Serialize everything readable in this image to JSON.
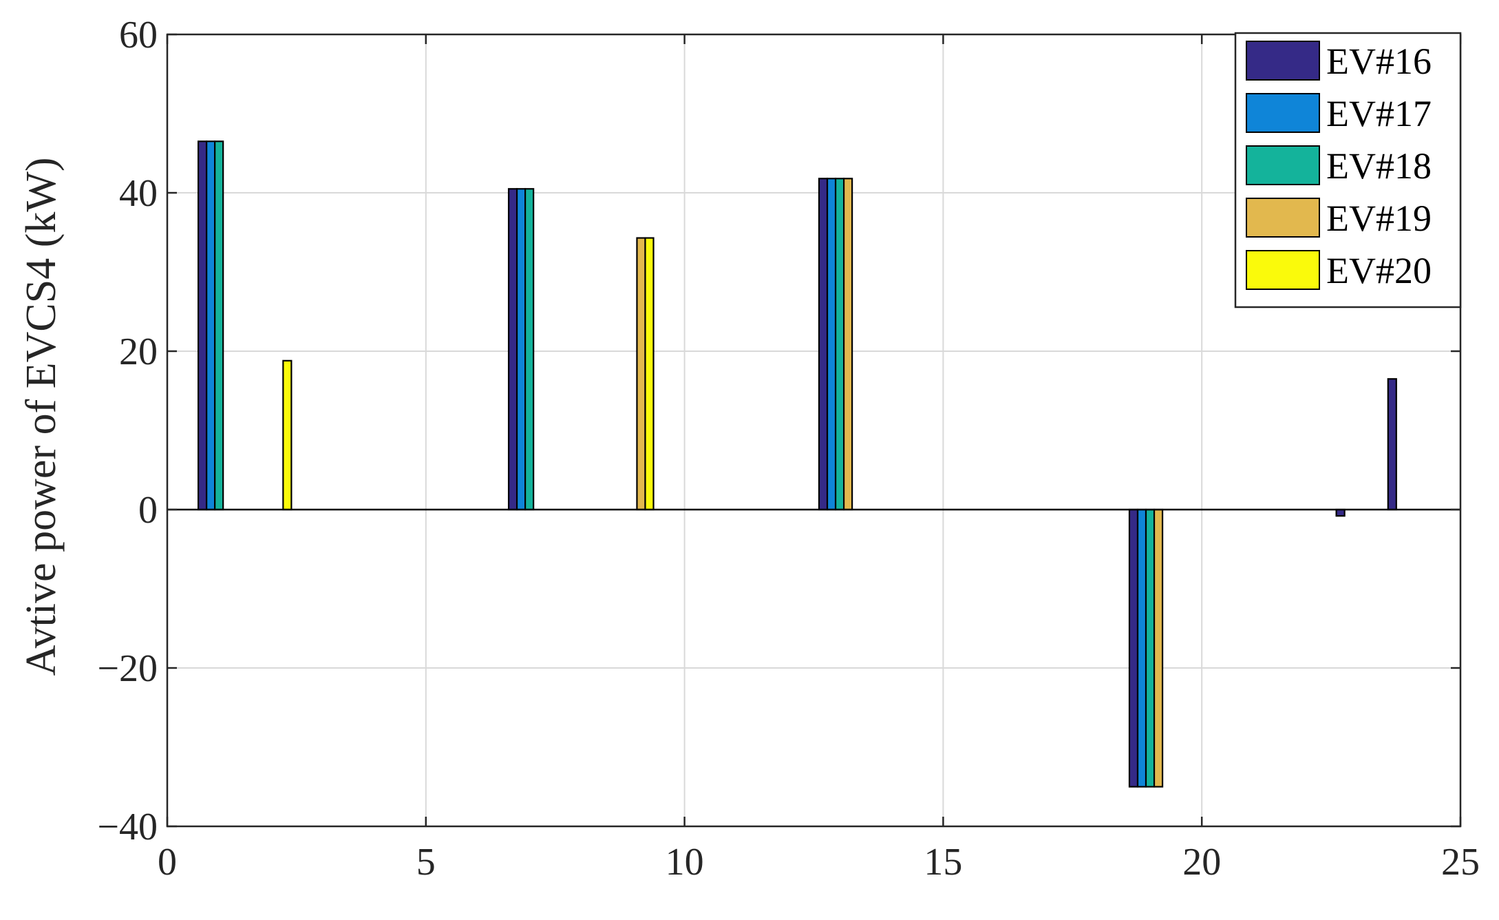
{
  "chart_data": {
    "type": "bar",
    "xlabel": "",
    "ylabel": "Avtive power of EVCS4 (kW)",
    "xlim": [
      0,
      25
    ],
    "ylim": [
      -40,
      60
    ],
    "xticks": [
      "0",
      "5",
      "10",
      "15",
      "20",
      "25"
    ],
    "yticks": [
      "60",
      "40",
      "20",
      "0",
      "−20",
      "−40"
    ],
    "yticks_values": [
      60,
      40,
      20,
      0,
      -20,
      -40
    ],
    "xticks_values": [
      0,
      5,
      10,
      15,
      20,
      25
    ],
    "grid": true,
    "legend_position": "top-right",
    "x": [
      1,
      2,
      3,
      4,
      5,
      6,
      7,
      8,
      9,
      10,
      11,
      12,
      13,
      14,
      15,
      16,
      17,
      18,
      19,
      20,
      21,
      22,
      23,
      24
    ],
    "series": [
      {
        "name": "EV#16",
        "color": "#352a87",
        "values": [
          46.5,
          0,
          0,
          0,
          0,
          0,
          40.5,
          0,
          0,
          0,
          0,
          0,
          41.8,
          0,
          0,
          0,
          0,
          0,
          -35,
          0,
          0,
          0,
          -0.8,
          16.5
        ]
      },
      {
        "name": "EV#17",
        "color": "#0f85d8",
        "values": [
          46.5,
          0,
          0,
          0,
          0,
          0,
          40.5,
          0,
          0,
          0,
          0,
          0,
          41.8,
          0,
          0,
          0,
          0,
          0,
          -35,
          0,
          0,
          0,
          0,
          0
        ]
      },
      {
        "name": "EV#18",
        "color": "#14b39b",
        "values": [
          46.5,
          0,
          0,
          0,
          0,
          0,
          40.5,
          0,
          0,
          0,
          0,
          0,
          41.8,
          0,
          0,
          0,
          0,
          0,
          -35,
          0,
          0,
          0,
          0,
          0
        ]
      },
      {
        "name": "EV#19",
        "color": "#e2b84e",
        "values": [
          0,
          0,
          0,
          0,
          0,
          0,
          0,
          0,
          34.3,
          0,
          0,
          0,
          41.8,
          0,
          0,
          0,
          0,
          0,
          -35,
          0,
          0,
          0,
          0,
          0
        ]
      },
      {
        "name": "EV#20",
        "color": "#fafa0b",
        "values": [
          0,
          18.8,
          0,
          0,
          0,
          0,
          0,
          0,
          34.3,
          0,
          0,
          0,
          0,
          0,
          0,
          0,
          0,
          0,
          0,
          0,
          0,
          0,
          0,
          0
        ]
      }
    ]
  }
}
